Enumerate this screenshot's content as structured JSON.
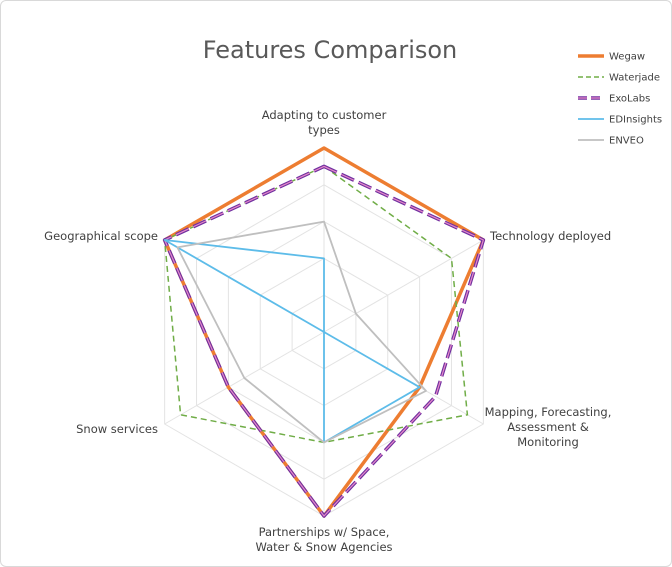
{
  "chart_data": {
    "type": "radar",
    "title": "Features Comparison",
    "axes": [
      "Adapting to customer types",
      "Technology deployed",
      "Mapping, Forecasting, Assessment & Monitoring",
      "Partnerships w/ Space, Water & Snow Agencies",
      "Snow services",
      "Geographical scope"
    ],
    "rlim": [
      0,
      5
    ],
    "grid": true,
    "legend_position": "top-right",
    "series": [
      {
        "name": "Wegaw",
        "values": [
          5,
          5,
          3,
          5,
          3,
          5
        ],
        "color": "#ed7d31",
        "dash": "none",
        "width": 3.5
      },
      {
        "name": "Waterjade",
        "values": [
          4.5,
          4,
          4.5,
          3,
          4.5,
          5
        ],
        "color": "#70ad47",
        "dash": "6,4",
        "width": 1.5
      },
      {
        "name": "ExoLabs",
        "values": [
          4.5,
          5,
          3.5,
          5,
          3,
          5
        ],
        "color": "#7030a0",
        "dash": "14,5",
        "width": 3.5,
        "inner": "#e589c8"
      },
      {
        "name": "EDInsights",
        "values": [
          2,
          0,
          3,
          3,
          0,
          5
        ],
        "color": "#5dbce9",
        "dash": "none",
        "width": 1.8
      },
      {
        "name": "ENVEO",
        "values": [
          3,
          1,
          3.2,
          3,
          2.5,
          4.6
        ],
        "color": "#bfbfbf",
        "dash": "none",
        "width": 1.8
      }
    ]
  }
}
